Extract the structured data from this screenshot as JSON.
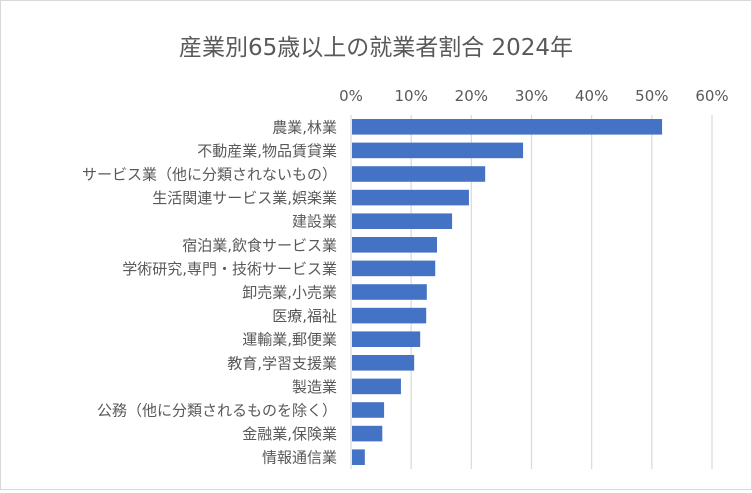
{
  "chart_data": {
    "type": "bar",
    "orientation": "horizontal",
    "title": "産業別65歳以上の就業者割合 2024年",
    "categories": [
      "農業,林業",
      "不動産業,物品賃貸業",
      "サービス業（他に分類されないもの）",
      "生活関連サービス業,娯楽業",
      "建設業",
      "宿泊業,飲食サービス業",
      "学術研究,専門・技術サービス業",
      "卸売業,小売業",
      "医療,福祉",
      "運輸業,郵便業",
      "教育,学習支援業",
      "製造業",
      "公務（他に分類されるものを除く）",
      "金融業,保険業",
      "情報通信業"
    ],
    "values": [
      51.7,
      28.6,
      22.3,
      19.6,
      16.8,
      14.3,
      14.0,
      12.6,
      12.5,
      11.5,
      10.5,
      8.3,
      5.5,
      5.2,
      2.3
    ],
    "unit": "%",
    "xlim": [
      0,
      60
    ],
    "ticks": [
      "0%",
      "10%",
      "20%",
      "30%",
      "40%",
      "50%",
      "60%"
    ],
    "tick_values": [
      0,
      10,
      20,
      30,
      40,
      50,
      60
    ],
    "axis_position": "top",
    "grid": true,
    "legend": "none",
    "colors": {
      "bar": "#4472c4",
      "grid": "#d9d9d9",
      "text": "#595959"
    }
  }
}
